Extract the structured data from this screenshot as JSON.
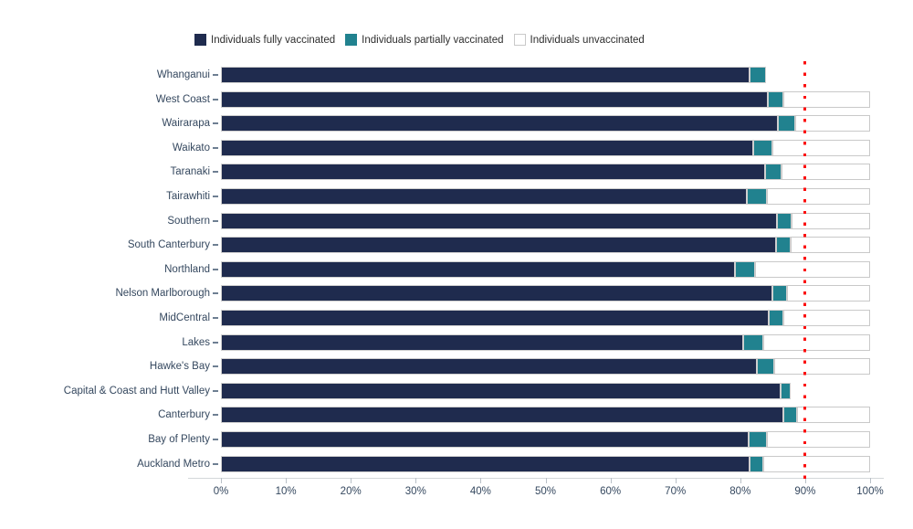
{
  "figure": {
    "background": "#ffffff"
  },
  "legend": {
    "position": "top",
    "items": [
      {
        "label": "Individuals fully vaccinated",
        "swatch_color": "#1f2b4e",
        "swatch_border": "#1f2b4e"
      },
      {
        "label": "Individuals partially vaccinated",
        "swatch_color": "#21828f",
        "swatch_border": "#21828f"
      },
      {
        "label": "Individuals unvaccinated",
        "swatch_color": "#ffffff",
        "swatch_border": "#c9c9c9"
      }
    ]
  },
  "chart_data": {
    "type": "bar",
    "orientation": "horizontal",
    "stacked": true,
    "title": "",
    "xlabel": "",
    "ylabel": "",
    "grid": false,
    "legend_position": "top",
    "xlim": [
      0,
      100
    ],
    "x_tick_labels": [
      "0%",
      "10%",
      "20%",
      "30%",
      "40%",
      "50%",
      "60%",
      "70%",
      "80%",
      "90%",
      "100%"
    ],
    "categories": [
      "Whanganui",
      "West Coast",
      "Wairarapa",
      "Waikato",
      "Taranaki",
      "Tairawhiti",
      "Southern",
      "South Canterbury",
      "Northland",
      "Nelson Marlborough",
      "MidCentral",
      "Lakes",
      "Hawke's Bay",
      "Capital & Coast and Hutt Valley",
      "Canterbury",
      "Bay of Plenty",
      "Auckland Metro"
    ],
    "series": [
      {
        "name": "Individuals fully vaccinated",
        "color": "#1f2b4e",
        "values": [
          81.4,
          84.2,
          85.8,
          82.0,
          83.8,
          81.0,
          85.7,
          85.5,
          79.2,
          85.0,
          84.4,
          80.5,
          82.5,
          86.2,
          86.6,
          81.3,
          81.4
        ]
      },
      {
        "name": "Individuals partially vaccinated",
        "color": "#21828f",
        "values": [
          2.6,
          2.5,
          2.6,
          2.9,
          2.5,
          3.1,
          2.2,
          2.3,
          3.1,
          2.2,
          2.3,
          3.1,
          2.7,
          1.6,
          2.2,
          2.8,
          2.2
        ]
      },
      {
        "name": "Individuals unvaccinated",
        "color": "#ffffff",
        "border_color": "#c9c9c9",
        "values": [
          0,
          13.3,
          11.6,
          15.1,
          13.7,
          15.9,
          12.1,
          12.2,
          17.7,
          12.8,
          13.3,
          16.4,
          14.8,
          0,
          11.2,
          15.9,
          16.4
        ]
      }
    ],
    "reference_line": {
      "orientation": "vertical",
      "value": 90,
      "color": "#fb0e0e",
      "style": "dotted"
    }
  }
}
